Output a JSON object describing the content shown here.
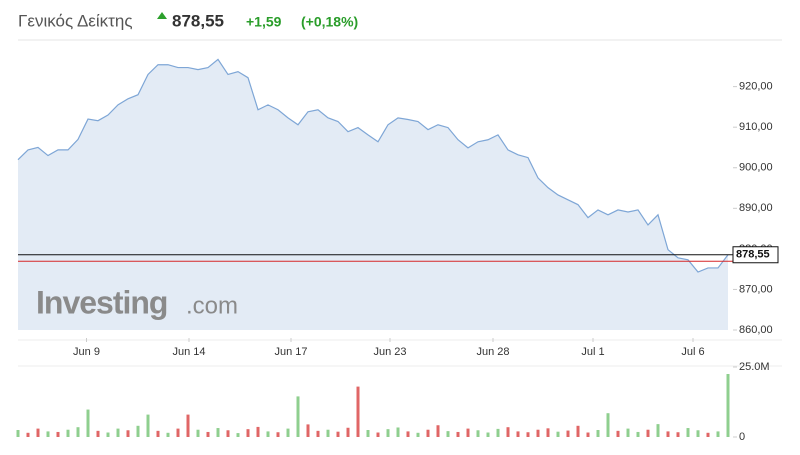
{
  "chart_data": {
    "type": "line",
    "title": "Γενικός Δείκτης",
    "last": "878,55",
    "change": "+1,59",
    "change_pct": "(+0,18%)",
    "watermark_brand": "Investing",
    "watermark_domain": ".com",
    "x": [
      0,
      1,
      2,
      3,
      4,
      5,
      6,
      7,
      8,
      9,
      10,
      11,
      12,
      13,
      14,
      15,
      16,
      17,
      18,
      19,
      20,
      21,
      22,
      23,
      24,
      25,
      26,
      27,
      28,
      29,
      30,
      31,
      32,
      33,
      34,
      35,
      36,
      37,
      38,
      39,
      40,
      41,
      42,
      43,
      44,
      45,
      46,
      47,
      48,
      49,
      50,
      51,
      52,
      53,
      54,
      55,
      56,
      57,
      58,
      59,
      60,
      61,
      62,
      63,
      64,
      65,
      66,
      67,
      68,
      69,
      70,
      71
    ],
    "series": [
      {
        "color": "#7ea6d6",
        "values": [
          902,
          904.4,
          905,
          903,
          904.4,
          904.4,
          907,
          912,
          911.6,
          913,
          915.5,
          917,
          918,
          923,
          925.4,
          925.4,
          924.7,
          924.7,
          924.2,
          924.7,
          926.7,
          923,
          923.7,
          922.2,
          914.3,
          915.5,
          914.3,
          912.3,
          910.6,
          913.8,
          914.3,
          912.3,
          911.4,
          908.9,
          909.9,
          908.1,
          906.4,
          910.6,
          912.3,
          911.9,
          911.4,
          909.4,
          910.6,
          909.9,
          906.9,
          904.9,
          906.4,
          906.9,
          908.1,
          904.4,
          903.2,
          902.5,
          897.5,
          895.1,
          893.3,
          892.1,
          890.9,
          887.7,
          889.6,
          888.4,
          889.6,
          889.1,
          889.6,
          885.9,
          888.4,
          879.8,
          877.8,
          877.3,
          874.3,
          875.3,
          875.3,
          878.55
        ]
      }
    ],
    "xlim": [
      0,
      71
    ],
    "xticks": [
      {
        "value": 6.85,
        "label": "Jun 9"
      },
      {
        "value": 17.1,
        "label": "Jun 14"
      },
      {
        "value": 27.3,
        "label": "Jun 17"
      },
      {
        "value": 37.2,
        "label": "Jun 23"
      },
      {
        "value": 47.5,
        "label": "Jun 28"
      },
      {
        "value": 57.5,
        "label": "Jul 1"
      },
      {
        "value": 67.5,
        "label": "Jul 6"
      }
    ],
    "ylim": [
      860,
      931
    ],
    "yticks": [
      {
        "value": 860,
        "label": "860,00"
      },
      {
        "value": 870,
        "label": "870,00"
      },
      {
        "value": 880,
        "label": "880,00"
      },
      {
        "value": 890,
        "label": "890,00"
      },
      {
        "value": 900,
        "label": "900,00"
      },
      {
        "value": 910,
        "label": "910,00"
      },
      {
        "value": 920,
        "label": "920,00"
      }
    ],
    "price_tag": {
      "value": 878.55,
      "label": "878,55"
    },
    "prev_close": 876.96,
    "volume": {
      "values": [
        2.5,
        1.5,
        3,
        2,
        1.8,
        2.6,
        3.5,
        9.8,
        2.2,
        1.6,
        3,
        2.4,
        4,
        8,
        2.2,
        1.5,
        3,
        8,
        2.6,
        1.8,
        3.2,
        2.4,
        1.4,
        2.8,
        3.6,
        2,
        1.7,
        3,
        14.5,
        4.5,
        2.2,
        2.6,
        1.9,
        3.3,
        18,
        2.5,
        1.6,
        2.8,
        3.4,
        2,
        1.5,
        2.6,
        4.2,
        2.1,
        1.8,
        3,
        2.4,
        1.6,
        2.9,
        3.5,
        2,
        1.7,
        2.6,
        3.1,
        1.9,
        2.3,
        4,
        1.6,
        2.5,
        8.5,
        2.2,
        3,
        1.8,
        2.6,
        4.6,
        2,
        1.7,
        3.2,
        2.4,
        1.5,
        2,
        22.5
      ],
      "colors": [
        "#8fcf8f",
        "#e06666",
        "#e06666",
        "#8fcf8f",
        "#e06666",
        "#8fcf8f",
        "#8fcf8f",
        "#8fcf8f",
        "#e06666",
        "#8fcf8f",
        "#8fcf8f",
        "#e06666",
        "#8fcf8f",
        "#8fcf8f",
        "#e06666",
        "#8fcf8f",
        "#e06666",
        "#e06666",
        "#8fcf8f",
        "#e06666",
        "#8fcf8f",
        "#e06666",
        "#8fcf8f",
        "#e06666",
        "#e06666",
        "#8fcf8f",
        "#e06666",
        "#8fcf8f",
        "#8fcf8f",
        "#e06666",
        "#e06666",
        "#8fcf8f",
        "#e06666",
        "#e06666",
        "#e06666",
        "#8fcf8f",
        "#e06666",
        "#8fcf8f",
        "#8fcf8f",
        "#e06666",
        "#8fcf8f",
        "#e06666",
        "#e06666",
        "#8fcf8f",
        "#e06666",
        "#e06666",
        "#8fcf8f",
        "#8fcf8f",
        "#8fcf8f",
        "#e06666",
        "#e06666",
        "#e06666",
        "#e06666",
        "#e06666",
        "#8fcf8f",
        "#e06666",
        "#e06666",
        "#e06666",
        "#8fcf8f",
        "#8fcf8f",
        "#e06666",
        "#8fcf8f",
        "#8fcf8f",
        "#e06666",
        "#8fcf8f",
        "#e06666",
        "#e06666",
        "#8fcf8f",
        "#8fcf8f",
        "#e06666",
        "#8fcf8f",
        "#8fcf8f"
      ],
      "ylim": [
        0,
        25
      ],
      "yticks": [
        0,
        {
          "value": 25,
          "label": "25.0M"
        }
      ]
    }
  }
}
